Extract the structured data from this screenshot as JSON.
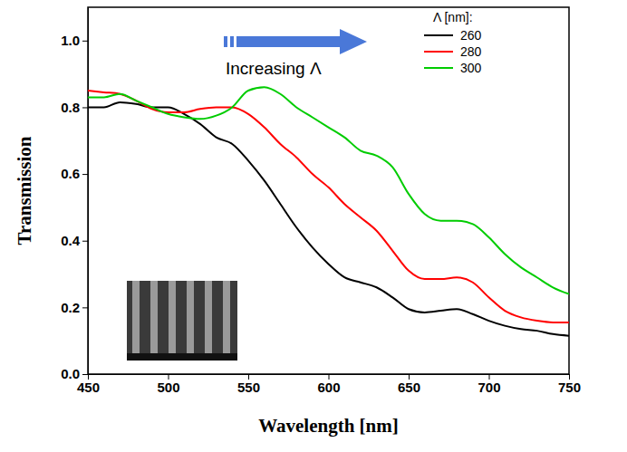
{
  "chart_data": {
    "type": "line",
    "x_label": "Wavelength [nm]",
    "y_label": "Transmission",
    "legend_title": "Λ [nm]:",
    "legend": "upper right",
    "annotations": [
      {
        "text": "Increasing Λ"
      }
    ],
    "x": [
      450,
      460,
      470,
      480,
      490,
      500,
      510,
      520,
      530,
      540,
      550,
      560,
      570,
      580,
      590,
      600,
      610,
      620,
      630,
      640,
      650,
      660,
      670,
      680,
      690,
      700,
      710,
      720,
      730,
      740,
      750
    ],
    "series": [
      {
        "name": "260",
        "color": "#000000",
        "values": [
          0.8,
          0.8,
          0.815,
          0.81,
          0.8,
          0.8,
          0.78,
          0.75,
          0.71,
          0.69,
          0.64,
          0.58,
          0.51,
          0.44,
          0.38,
          0.33,
          0.29,
          0.275,
          0.26,
          0.23,
          0.195,
          0.185,
          0.19,
          0.195,
          0.18,
          0.16,
          0.145,
          0.135,
          0.13,
          0.12,
          0.115
        ]
      },
      {
        "name": "280",
        "color": "#ff0000",
        "values": [
          0.85,
          0.845,
          0.84,
          0.82,
          0.795,
          0.785,
          0.785,
          0.795,
          0.8,
          0.8,
          0.78,
          0.74,
          0.69,
          0.65,
          0.6,
          0.56,
          0.51,
          0.47,
          0.43,
          0.37,
          0.31,
          0.285,
          0.285,
          0.29,
          0.275,
          0.23,
          0.19,
          0.17,
          0.16,
          0.155,
          0.155
        ]
      },
      {
        "name": "300",
        "color": "#00cc00",
        "values": [
          0.83,
          0.83,
          0.84,
          0.82,
          0.8,
          0.78,
          0.77,
          0.765,
          0.775,
          0.8,
          0.85,
          0.86,
          0.84,
          0.8,
          0.77,
          0.74,
          0.71,
          0.67,
          0.655,
          0.62,
          0.54,
          0.48,
          0.46,
          0.46,
          0.45,
          0.41,
          0.36,
          0.32,
          0.29,
          0.26,
          0.24
        ]
      }
    ],
    "xlim": [
      450,
      750
    ],
    "xticks": [
      450,
      500,
      550,
      600,
      650,
      700,
      750
    ],
    "ylim": [
      0,
      1.1
    ],
    "yticks": [
      {
        "value": 0,
        "label": "0.0"
      },
      0.2,
      0.4,
      0.6,
      0.8,
      {
        "value": 1,
        "label": "1.0"
      }
    ]
  }
}
